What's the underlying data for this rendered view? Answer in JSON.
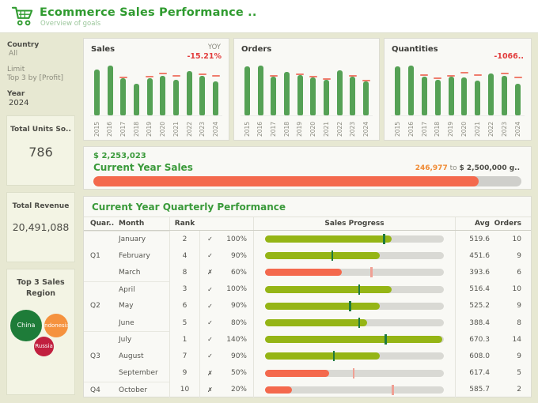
{
  "header": {
    "title": "Ecommerce Sales Performance ..",
    "subtitle": "Overview of goals"
  },
  "filters": {
    "country_label": "Country",
    "country_value": "All",
    "limit_label": "Limit",
    "limit_value": "Top 3 by [Profit]",
    "year_label": "Year",
    "year_value": "2024"
  },
  "kpi_cards": [
    {
      "label": "Total Units So..",
      "value": "786"
    },
    {
      "label": "Total Revenue",
      "value": "20,491,088"
    }
  ],
  "chart_data": [
    {
      "type": "bar",
      "title": "Sales",
      "yoy_label": "YOY",
      "yoy_value": "-15.21%",
      "categories": [
        "2015",
        "2016",
        "2017",
        "2018",
        "2019",
        "2020",
        "2021",
        "2022",
        "2023",
        "2024"
      ],
      "values_pct_of_max": [
        92,
        100,
        74,
        63,
        75,
        79,
        72,
        89,
        80,
        69
      ],
      "prior_year_ticks": [
        null,
        null,
        74,
        null,
        76,
        83,
        78,
        null,
        81,
        78
      ],
      "bar_color": "#55a155",
      "tick_color": "#ef7d6d"
    },
    {
      "type": "bar",
      "title": "Orders",
      "categories": [
        "2015",
        "2016",
        "2017",
        "2018",
        "2019",
        "2020",
        "2021",
        "2022",
        "2023",
        "2024"
      ],
      "values_pct_of_max": [
        99,
        100,
        78,
        87,
        81,
        76,
        71,
        91,
        78,
        69
      ],
      "prior_year_ticks": [
        null,
        null,
        78,
        null,
        81,
        76,
        71,
        null,
        78,
        69
      ],
      "bar_color": "#55a155",
      "tick_color": "#ef7d6d"
    },
    {
      "type": "bar",
      "title": "Quantities",
      "yoy_value": "-1066..",
      "categories": [
        "2015",
        "2016",
        "2017",
        "2018",
        "2019",
        "2020",
        "2021",
        "2022",
        "2023",
        "2024"
      ],
      "values_pct_of_max": [
        98,
        100,
        77,
        71,
        78,
        76,
        70,
        84,
        79,
        63
      ],
      "prior_year_ticks": [
        null,
        null,
        80,
        73,
        78,
        84,
        79,
        null,
        83,
        75
      ],
      "bar_color": "#55a155",
      "tick_color": "#ef7d6d"
    },
    {
      "type": "bullet",
      "value": "$ 2,253,023",
      "title": "Current Year Sales",
      "remaining": "246,977",
      "to_text": "to",
      "goal": "$ 2,500,000 g..",
      "progress_pct": 90,
      "fill_color": "#f4694d"
    },
    {
      "type": "bubble",
      "title": "Top 3 Sales",
      "title_line2": "Region",
      "bubbles": [
        {
          "name": "China",
          "color": "#1e7c39",
          "size": 40,
          "x": 4,
          "y": 12
        },
        {
          "name": "Indonesia",
          "color": "#f5923e",
          "size": 30,
          "x": 47,
          "y": 17
        },
        {
          "name": "Russia",
          "color": "#c11f3e",
          "size": 25,
          "x": 34,
          "y": 46
        }
      ]
    },
    {
      "type": "table",
      "title": "Current Year Quarterly Performance",
      "columns": {
        "quarter": "Quar..",
        "month": "Month",
        "rank": "Rank",
        "progress": "Sales Progress",
        "avg": "Avg",
        "orders": "Orders"
      },
      "rows": [
        {
          "quarter": "",
          "month": "January",
          "rank": "2",
          "pass": true,
          "pct": "100%",
          "fill": 71,
          "marker": 66,
          "state": "green",
          "avg": "519.6",
          "orders": "10",
          "group_start": true
        },
        {
          "quarter": "Q1",
          "month": "February",
          "rank": "4",
          "pass": true,
          "pct": "90%",
          "fill": 64,
          "marker": 37,
          "state": "green",
          "avg": "451.6",
          "orders": "9"
        },
        {
          "quarter": "",
          "month": "March",
          "rank": "8",
          "pass": false,
          "pct": "60%",
          "fill": 43,
          "marker": 59,
          "state": "orange",
          "avg": "393.6",
          "orders": "6"
        },
        {
          "quarter": "",
          "month": "April",
          "rank": "3",
          "pass": true,
          "pct": "100%",
          "fill": 71,
          "marker": 52,
          "state": "green",
          "avg": "516.4",
          "orders": "10",
          "group_start": true
        },
        {
          "quarter": "Q2",
          "month": "May",
          "rank": "6",
          "pass": true,
          "pct": "90%",
          "fill": 64,
          "marker": 47,
          "state": "green",
          "avg": "525.2",
          "orders": "9"
        },
        {
          "quarter": "",
          "month": "June",
          "rank": "5",
          "pass": true,
          "pct": "80%",
          "fill": 57,
          "marker": 52,
          "state": "green",
          "avg": "388.4",
          "orders": "8"
        },
        {
          "quarter": "",
          "month": "July",
          "rank": "1",
          "pass": true,
          "pct": "140%",
          "fill": 99,
          "marker": 67,
          "state": "green",
          "avg": "670.3",
          "orders": "14",
          "group_start": true
        },
        {
          "quarter": "Q3",
          "month": "August",
          "rank": "7",
          "pass": true,
          "pct": "90%",
          "fill": 64,
          "marker": 38,
          "state": "green",
          "avg": "608.0",
          "orders": "9"
        },
        {
          "quarter": "",
          "month": "September",
          "rank": "9",
          "pass": false,
          "pct": "50%",
          "fill": 36,
          "marker": 49,
          "state": "orange",
          "avg": "617.4",
          "orders": "5"
        },
        {
          "quarter": "Q4",
          "month": "October",
          "rank": "10",
          "pass": false,
          "pct": "20%",
          "fill": 15,
          "marker": 71,
          "state": "orange",
          "avg": "585.7",
          "orders": "2",
          "group_start": true
        }
      ]
    }
  ]
}
